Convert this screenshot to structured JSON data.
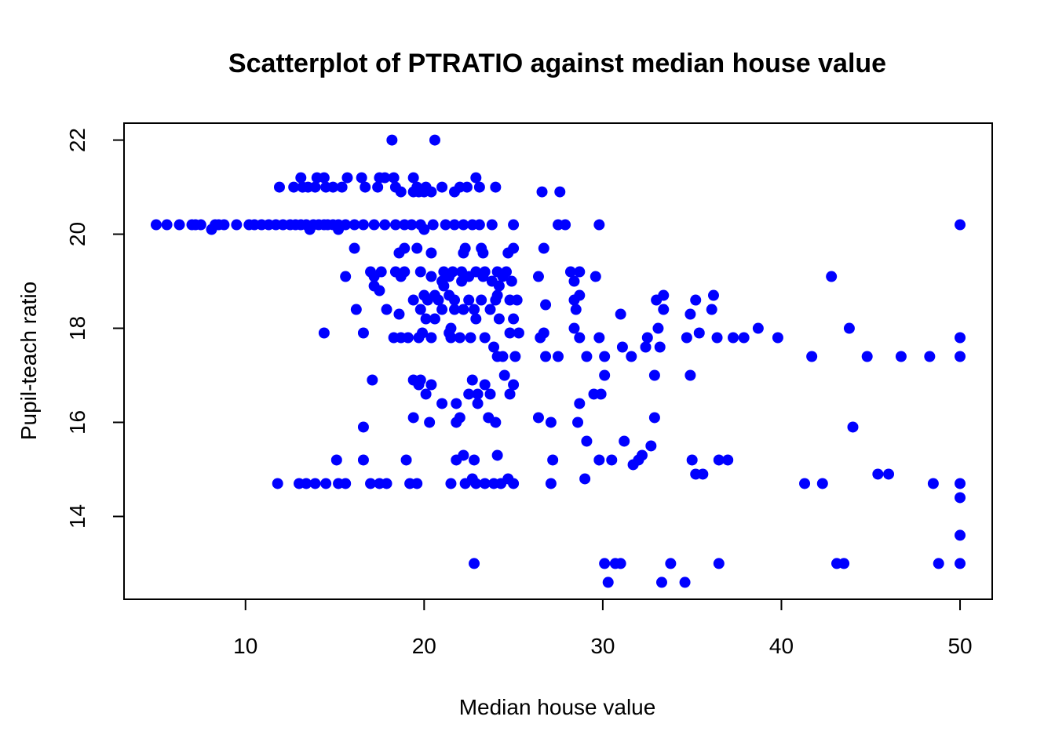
{
  "chart_data": {
    "type": "scatter",
    "title": "Scatterplot of PTRATIO against median house value",
    "xlabel": "Median house value",
    "ylabel": "Pupil-teach ratio",
    "xlim": [
      3.2,
      51.8
    ],
    "ylim": [
      12.24,
      22.36
    ],
    "x_ticks": [
      10,
      20,
      30,
      40,
      50
    ],
    "y_ticks": [
      14,
      16,
      18,
      20,
      22
    ],
    "grid": false,
    "point_color": "#0000ff",
    "points": [
      [
        18.2,
        22.0
      ],
      [
        20.6,
        22.0
      ],
      [
        13.1,
        21.2
      ],
      [
        14.0,
        21.2
      ],
      [
        14.4,
        21.2
      ],
      [
        15.7,
        21.2
      ],
      [
        16.5,
        21.2
      ],
      [
        17.5,
        21.2
      ],
      [
        17.8,
        21.2
      ],
      [
        18.3,
        21.2
      ],
      [
        19.4,
        21.2
      ],
      [
        22.9,
        21.2
      ],
      [
        11.9,
        21.0
      ],
      [
        12.7,
        21.0
      ],
      [
        13.2,
        21.0
      ],
      [
        13.5,
        21.0
      ],
      [
        13.9,
        21.0
      ],
      [
        14.5,
        21.0
      ],
      [
        14.9,
        21.0
      ],
      [
        15.4,
        21.0
      ],
      [
        16.7,
        21.0
      ],
      [
        17.4,
        21.0
      ],
      [
        18.4,
        21.0
      ],
      [
        19.6,
        21.0
      ],
      [
        20.1,
        21.0
      ],
      [
        21.0,
        21.0
      ],
      [
        22.0,
        21.0
      ],
      [
        22.4,
        21.0
      ],
      [
        23.1,
        21.0
      ],
      [
        24.0,
        21.0
      ],
      [
        18.7,
        20.9
      ],
      [
        19.4,
        20.9
      ],
      [
        19.7,
        20.9
      ],
      [
        20.0,
        20.9
      ],
      [
        20.4,
        20.9
      ],
      [
        21.7,
        20.9
      ],
      [
        26.6,
        20.9
      ],
      [
        27.6,
        20.9
      ],
      [
        5.0,
        20.2
      ],
      [
        5.6,
        20.2
      ],
      [
        6.3,
        20.2
      ],
      [
        7.0,
        20.2
      ],
      [
        7.2,
        20.2
      ],
      [
        7.5,
        20.2
      ],
      [
        8.3,
        20.2
      ],
      [
        8.5,
        20.2
      ],
      [
        8.8,
        20.2
      ],
      [
        9.5,
        20.2
      ],
      [
        10.2,
        20.2
      ],
      [
        10.5,
        20.2
      ],
      [
        10.9,
        20.2
      ],
      [
        11.3,
        20.2
      ],
      [
        11.7,
        20.2
      ],
      [
        12.1,
        20.2
      ],
      [
        12.5,
        20.2
      ],
      [
        12.8,
        20.2
      ],
      [
        13.1,
        20.2
      ],
      [
        13.4,
        20.2
      ],
      [
        13.8,
        20.2
      ],
      [
        14.1,
        20.2
      ],
      [
        14.4,
        20.2
      ],
      [
        14.6,
        20.2
      ],
      [
        14.9,
        20.2
      ],
      [
        15.2,
        20.2
      ],
      [
        15.6,
        20.2
      ],
      [
        16.1,
        20.2
      ],
      [
        16.6,
        20.2
      ],
      [
        17.2,
        20.2
      ],
      [
        17.8,
        20.2
      ],
      [
        18.4,
        20.2
      ],
      [
        18.9,
        20.2
      ],
      [
        19.3,
        20.2
      ],
      [
        19.8,
        20.2
      ],
      [
        20.5,
        20.2
      ],
      [
        21.2,
        20.2
      ],
      [
        21.7,
        20.2
      ],
      [
        22.2,
        20.2
      ],
      [
        22.7,
        20.2
      ],
      [
        23.1,
        20.2
      ],
      [
        23.8,
        20.2
      ],
      [
        25.0,
        20.2
      ],
      [
        27.5,
        20.2
      ],
      [
        27.9,
        20.2
      ],
      [
        29.8,
        20.2
      ],
      [
        50.0,
        20.2
      ],
      [
        8.1,
        20.1
      ],
      [
        13.6,
        20.1
      ],
      [
        15.2,
        20.1
      ],
      [
        20.0,
        20.1
      ],
      [
        16.1,
        19.7
      ],
      [
        18.9,
        19.7
      ],
      [
        19.6,
        19.7
      ],
      [
        22.3,
        19.7
      ],
      [
        23.2,
        19.7
      ],
      [
        25.0,
        19.7
      ],
      [
        26.7,
        19.7
      ],
      [
        18.6,
        19.6
      ],
      [
        20.4,
        19.6
      ],
      [
        22.2,
        19.6
      ],
      [
        23.3,
        19.6
      ],
      [
        24.7,
        19.6
      ],
      [
        17.0,
        19.2
      ],
      [
        17.6,
        19.2
      ],
      [
        18.4,
        19.2
      ],
      [
        18.9,
        19.2
      ],
      [
        19.8,
        19.2
      ],
      [
        21.1,
        19.2
      ],
      [
        21.6,
        19.2
      ],
      [
        22.1,
        19.2
      ],
      [
        22.9,
        19.2
      ],
      [
        23.4,
        19.2
      ],
      [
        24.1,
        19.2
      ],
      [
        24.6,
        19.2
      ],
      [
        28.2,
        19.2
      ],
      [
        28.7,
        19.2
      ],
      [
        15.6,
        19.1
      ],
      [
        17.2,
        19.1
      ],
      [
        18.7,
        19.1
      ],
      [
        20.4,
        19.1
      ],
      [
        21.4,
        19.1
      ],
      [
        22.5,
        19.1
      ],
      [
        23.3,
        19.1
      ],
      [
        24.4,
        19.1
      ],
      [
        26.4,
        19.1
      ],
      [
        29.6,
        19.1
      ],
      [
        42.8,
        19.1
      ],
      [
        21.0,
        19.0
      ],
      [
        22.1,
        19.0
      ],
      [
        23.8,
        19.0
      ],
      [
        24.9,
        19.0
      ],
      [
        28.4,
        19.0
      ],
      [
        17.2,
        18.9
      ],
      [
        17.5,
        18.8
      ],
      [
        21.1,
        18.9
      ],
      [
        24.2,
        18.9
      ],
      [
        20.0,
        18.7
      ],
      [
        20.6,
        18.7
      ],
      [
        21.4,
        18.7
      ],
      [
        24.1,
        18.7
      ],
      [
        28.7,
        18.7
      ],
      [
        33.4,
        18.7
      ],
      [
        36.2,
        18.7
      ],
      [
        19.4,
        18.6
      ],
      [
        20.2,
        18.6
      ],
      [
        20.8,
        18.6
      ],
      [
        21.7,
        18.6
      ],
      [
        22.5,
        18.6
      ],
      [
        23.2,
        18.6
      ],
      [
        24.0,
        18.6
      ],
      [
        24.8,
        18.6
      ],
      [
        25.2,
        18.6
      ],
      [
        28.4,
        18.6
      ],
      [
        33.0,
        18.6
      ],
      [
        35.2,
        18.6
      ],
      [
        16.2,
        18.4
      ],
      [
        17.9,
        18.4
      ],
      [
        19.8,
        18.4
      ],
      [
        21.0,
        18.4
      ],
      [
        21.7,
        18.4
      ],
      [
        22.2,
        18.4
      ],
      [
        22.8,
        18.4
      ],
      [
        23.7,
        18.4
      ],
      [
        26.8,
        18.5
      ],
      [
        28.5,
        18.4
      ],
      [
        33.4,
        18.4
      ],
      [
        36.1,
        18.4
      ],
      [
        18.6,
        18.3
      ],
      [
        31.0,
        18.3
      ],
      [
        34.9,
        18.3
      ],
      [
        20.1,
        18.2
      ],
      [
        20.6,
        18.2
      ],
      [
        22.9,
        18.2
      ],
      [
        24.2,
        18.2
      ],
      [
        25.0,
        18.2
      ],
      [
        21.5,
        18.0
      ],
      [
        28.4,
        18.0
      ],
      [
        33.1,
        18.0
      ],
      [
        38.7,
        18.0
      ],
      [
        43.8,
        18.0
      ],
      [
        14.4,
        17.9
      ],
      [
        16.6,
        17.9
      ],
      [
        19.9,
        17.9
      ],
      [
        21.4,
        17.9
      ],
      [
        24.8,
        17.9
      ],
      [
        25.3,
        17.9
      ],
      [
        26.7,
        17.9
      ],
      [
        35.4,
        17.9
      ],
      [
        18.3,
        17.8
      ],
      [
        18.7,
        17.8
      ],
      [
        19.1,
        17.8
      ],
      [
        19.7,
        17.8
      ],
      [
        20.4,
        17.8
      ],
      [
        21.5,
        17.8
      ],
      [
        22.0,
        17.8
      ],
      [
        22.6,
        17.8
      ],
      [
        23.4,
        17.8
      ],
      [
        26.5,
        17.8
      ],
      [
        28.7,
        17.8
      ],
      [
        29.8,
        17.8
      ],
      [
        32.5,
        17.8
      ],
      [
        34.7,
        17.8
      ],
      [
        36.4,
        17.8
      ],
      [
        37.3,
        17.8
      ],
      [
        37.9,
        17.8
      ],
      [
        39.8,
        17.8
      ],
      [
        50.0,
        17.8
      ],
      [
        23.9,
        17.6
      ],
      [
        31.1,
        17.6
      ],
      [
        32.4,
        17.6
      ],
      [
        33.2,
        17.6
      ],
      [
        24.1,
        17.4
      ],
      [
        24.4,
        17.4
      ],
      [
        25.1,
        17.4
      ],
      [
        26.8,
        17.4
      ],
      [
        27.5,
        17.4
      ],
      [
        29.1,
        17.4
      ],
      [
        30.1,
        17.4
      ],
      [
        31.6,
        17.4
      ],
      [
        41.7,
        17.4
      ],
      [
        44.8,
        17.4
      ],
      [
        46.7,
        17.4
      ],
      [
        48.3,
        17.4
      ],
      [
        50.0,
        17.4
      ],
      [
        24.5,
        17.0
      ],
      [
        30.1,
        17.0
      ],
      [
        32.9,
        17.0
      ],
      [
        34.9,
        17.0
      ],
      [
        17.1,
        16.9
      ],
      [
        19.4,
        16.9
      ],
      [
        19.8,
        16.9
      ],
      [
        22.7,
        16.9
      ],
      [
        19.7,
        16.8
      ],
      [
        20.4,
        16.8
      ],
      [
        23.4,
        16.8
      ],
      [
        25.0,
        16.8
      ],
      [
        20.1,
        16.6
      ],
      [
        22.5,
        16.6
      ],
      [
        23.0,
        16.6
      ],
      [
        23.7,
        16.6
      ],
      [
        24.8,
        16.6
      ],
      [
        29.5,
        16.6
      ],
      [
        29.9,
        16.6
      ],
      [
        21.0,
        16.4
      ],
      [
        21.8,
        16.4
      ],
      [
        23.0,
        16.4
      ],
      [
        28.7,
        16.4
      ],
      [
        26.4,
        16.1
      ],
      [
        19.4,
        16.1
      ],
      [
        22.0,
        16.1
      ],
      [
        23.6,
        16.1
      ],
      [
        32.9,
        16.1
      ],
      [
        16.6,
        15.9
      ],
      [
        20.3,
        16.0
      ],
      [
        21.8,
        16.0
      ],
      [
        24.0,
        16.0
      ],
      [
        27.1,
        16.0
      ],
      [
        28.6,
        16.0
      ],
      [
        44.0,
        15.9
      ],
      [
        29.1,
        15.6
      ],
      [
        31.2,
        15.6
      ],
      [
        32.7,
        15.5
      ],
      [
        22.2,
        15.3
      ],
      [
        24.1,
        15.3
      ],
      [
        32.2,
        15.3
      ],
      [
        15.1,
        15.2
      ],
      [
        16.6,
        15.2
      ],
      [
        19.0,
        15.2
      ],
      [
        21.8,
        15.2
      ],
      [
        22.8,
        15.2
      ],
      [
        27.2,
        15.2
      ],
      [
        29.8,
        15.2
      ],
      [
        30.5,
        15.2
      ],
      [
        32.0,
        15.2
      ],
      [
        35.0,
        15.2
      ],
      [
        36.5,
        15.2
      ],
      [
        37.0,
        15.2
      ],
      [
        31.7,
        15.1
      ],
      [
        35.2,
        14.9
      ],
      [
        35.6,
        14.9
      ],
      [
        45.4,
        14.9
      ],
      [
        46.0,
        14.9
      ],
      [
        22.7,
        14.8
      ],
      [
        24.7,
        14.8
      ],
      [
        29.0,
        14.8
      ],
      [
        11.8,
        14.7
      ],
      [
        13.0,
        14.7
      ],
      [
        13.4,
        14.7
      ],
      [
        13.9,
        14.7
      ],
      [
        14.5,
        14.7
      ],
      [
        15.2,
        14.7
      ],
      [
        15.6,
        14.7
      ],
      [
        17.0,
        14.7
      ],
      [
        17.5,
        14.7
      ],
      [
        17.9,
        14.7
      ],
      [
        19.2,
        14.7
      ],
      [
        19.6,
        14.7
      ],
      [
        21.5,
        14.7
      ],
      [
        22.3,
        14.7
      ],
      [
        22.9,
        14.7
      ],
      [
        23.4,
        14.7
      ],
      [
        23.9,
        14.7
      ],
      [
        24.3,
        14.7
      ],
      [
        25.0,
        14.7
      ],
      [
        27.1,
        14.7
      ],
      [
        41.3,
        14.7
      ],
      [
        42.3,
        14.7
      ],
      [
        48.5,
        14.7
      ],
      [
        50.0,
        14.7
      ],
      [
        50.0,
        14.4
      ],
      [
        50.0,
        13.6
      ],
      [
        22.8,
        13.0
      ],
      [
        30.1,
        13.0
      ],
      [
        30.7,
        13.0
      ],
      [
        31.0,
        13.0
      ],
      [
        33.8,
        13.0
      ],
      [
        36.5,
        13.0
      ],
      [
        43.1,
        13.0
      ],
      [
        43.5,
        13.0
      ],
      [
        48.8,
        13.0
      ],
      [
        50.0,
        13.0
      ],
      [
        30.3,
        12.6
      ],
      [
        33.3,
        12.6
      ],
      [
        34.6,
        12.6
      ]
    ]
  }
}
